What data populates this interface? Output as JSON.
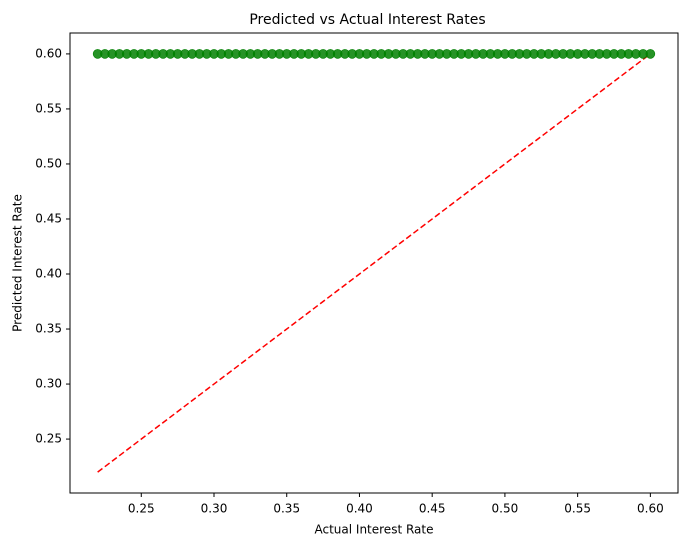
{
  "chart_data": {
    "type": "scatter",
    "title": "Predicted vs Actual Interest Rates",
    "xlabel": "Actual Interest Rate",
    "ylabel": "Predicted Interest Rate",
    "xlim": [
      0.201,
      0.619
    ],
    "ylim": [
      0.201,
      0.619
    ],
    "xticks": [
      0.25,
      0.3,
      0.35,
      0.4,
      0.45,
      0.5,
      0.55,
      0.6
    ],
    "yticks": [
      0.25,
      0.3,
      0.35,
      0.4,
      0.45,
      0.5,
      0.55,
      0.6
    ],
    "tick_format_decimals": 2,
    "grid": false,
    "series": [
      {
        "kind": "points",
        "color": "#008000",
        "x": [
          0.22,
          0.225,
          0.23,
          0.235,
          0.24,
          0.245,
          0.25,
          0.255,
          0.26,
          0.265,
          0.27,
          0.275,
          0.28,
          0.285,
          0.29,
          0.295,
          0.3,
          0.305,
          0.31,
          0.315,
          0.32,
          0.325,
          0.33,
          0.335,
          0.34,
          0.345,
          0.35,
          0.355,
          0.36,
          0.365,
          0.37,
          0.375,
          0.38,
          0.385,
          0.39,
          0.395,
          0.4,
          0.405,
          0.41,
          0.415,
          0.42,
          0.425,
          0.43,
          0.435,
          0.44,
          0.445,
          0.45,
          0.455,
          0.46,
          0.465,
          0.47,
          0.475,
          0.48,
          0.485,
          0.49,
          0.495,
          0.5,
          0.505,
          0.51,
          0.515,
          0.52,
          0.525,
          0.53,
          0.535,
          0.54,
          0.545,
          0.55,
          0.555,
          0.56,
          0.565,
          0.57,
          0.575,
          0.58,
          0.585,
          0.59,
          0.595,
          0.6
        ],
        "y": [
          0.6,
          0.6,
          0.6,
          0.6,
          0.6,
          0.6,
          0.6,
          0.6,
          0.6,
          0.6,
          0.6,
          0.6,
          0.6,
          0.6,
          0.6,
          0.6,
          0.6,
          0.6,
          0.6,
          0.6,
          0.6,
          0.6,
          0.6,
          0.6,
          0.6,
          0.6,
          0.6,
          0.6,
          0.6,
          0.6,
          0.6,
          0.6,
          0.6,
          0.6,
          0.6,
          0.6,
          0.6,
          0.6,
          0.6,
          0.6,
          0.6,
          0.6,
          0.6,
          0.6,
          0.6,
          0.6,
          0.6,
          0.6,
          0.6,
          0.6,
          0.6,
          0.6,
          0.6,
          0.6,
          0.6,
          0.6,
          0.6,
          0.6,
          0.6,
          0.6,
          0.6,
          0.6,
          0.6,
          0.6,
          0.6,
          0.6,
          0.6,
          0.6,
          0.6,
          0.6,
          0.6,
          0.6,
          0.6,
          0.6,
          0.6,
          0.6,
          0.6
        ]
      },
      {
        "kind": "line",
        "style": "dashed",
        "color": "#ff0000",
        "x": [
          0.22,
          0.6
        ],
        "y": [
          0.22,
          0.6
        ]
      }
    ]
  }
}
